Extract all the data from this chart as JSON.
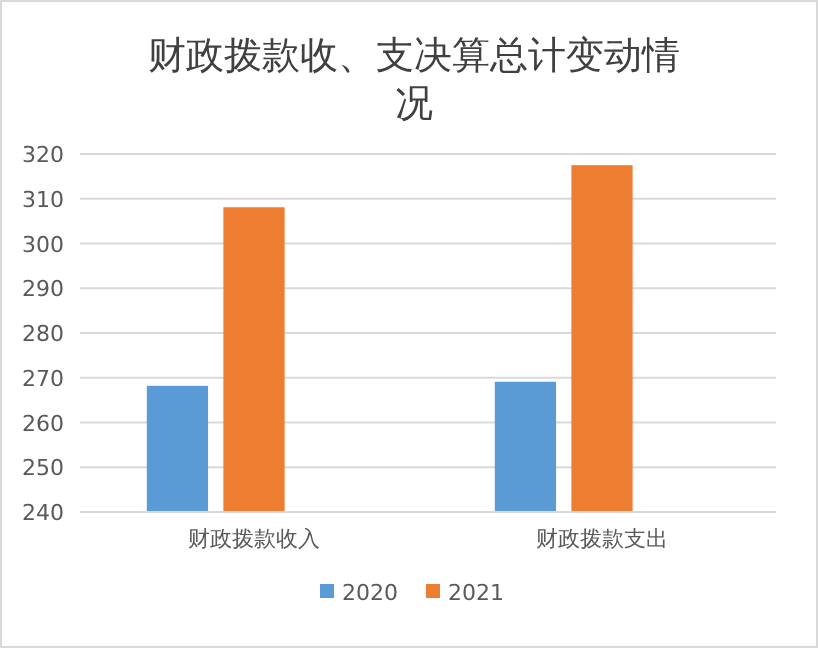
{
  "chart_data": {
    "type": "bar",
    "title": "财政拨款收、支决算总计变动情况",
    "categories": [
      "财政拨款收入",
      "财政拨款支出"
    ],
    "series": [
      {
        "name": "2020",
        "color": "#5b9bd5",
        "values": [
          268.2,
          269.1
        ]
      },
      {
        "name": "2021",
        "color": "#ed7d31",
        "values": [
          308.1,
          317.5
        ]
      }
    ],
    "ylim": [
      240,
      320
    ],
    "yticks": [
      240,
      250,
      260,
      270,
      280,
      290,
      300,
      310,
      320
    ],
    "grid": "y",
    "legend": "bottom"
  }
}
